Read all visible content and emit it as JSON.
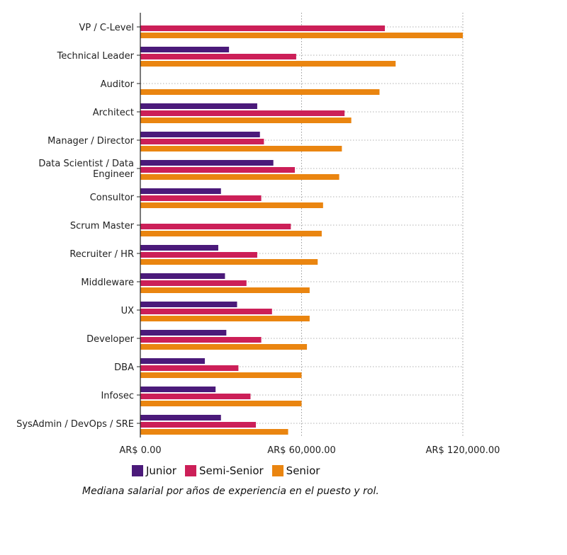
{
  "chart_data": {
    "type": "bar",
    "orientation": "horizontal",
    "title": "",
    "caption": "Mediana salarial por años de experiencia en el puesto y rol.",
    "xlabel": "",
    "ylabel": "",
    "xlim": [
      0,
      120000
    ],
    "x_ticks": [
      0,
      60000,
      120000
    ],
    "x_tick_labels": [
      "AR$ 0.00",
      "AR$ 60,000.00",
      "AR$ 120,000.00"
    ],
    "grid": true,
    "legend_position": "bottom-left",
    "categories": [
      [
        "VP / C-Level"
      ],
      [
        "Technical Leader"
      ],
      [
        "Auditor"
      ],
      [
        "Architect"
      ],
      [
        "Manager / Director"
      ],
      [
        "Data Scientist / Data",
        "Engineer"
      ],
      [
        "Consultor"
      ],
      [
        "Scrum Master"
      ],
      [
        "Recruiter / HR"
      ],
      [
        "Middleware"
      ],
      [
        "UX"
      ],
      [
        "Developer"
      ],
      [
        "DBA"
      ],
      [
        "Infosec"
      ],
      [
        "SysAdmin / DevOps / SRE"
      ]
    ],
    "series": [
      {
        "name": "Junior",
        "color": "#4b1a7a",
        "values": [
          null,
          33000,
          null,
          43500,
          44500,
          49500,
          30000,
          null,
          29000,
          31500,
          36000,
          32000,
          24000,
          28000,
          30000
        ]
      },
      {
        "name": "Semi-Senior",
        "color": "#cc1f58",
        "values": [
          91000,
          58000,
          null,
          76000,
          46000,
          57500,
          45000,
          56000,
          43500,
          39500,
          49000,
          45000,
          36500,
          41000,
          43000
        ]
      },
      {
        "name": "Senior",
        "color": "#ea8510",
        "values": [
          120000,
          95000,
          89000,
          78500,
          75000,
          74000,
          68000,
          67500,
          66000,
          63000,
          63000,
          62000,
          60000,
          60000,
          55000
        ]
      }
    ]
  }
}
